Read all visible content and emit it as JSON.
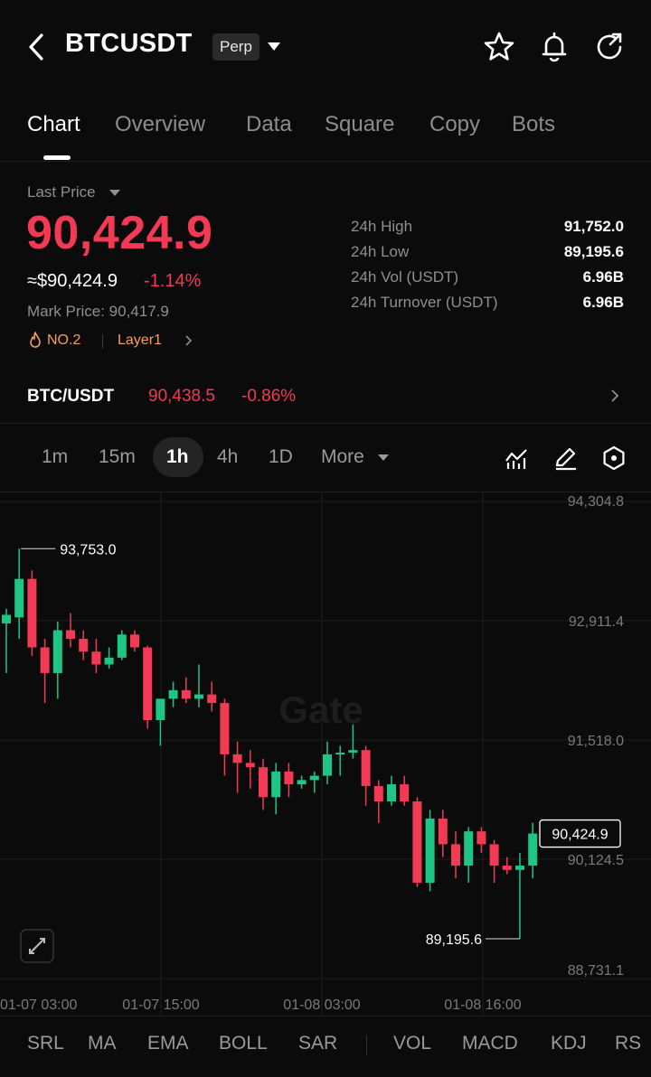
{
  "header": {
    "title": "BTCUSDT",
    "badge": "Perp",
    "icons": [
      "back-arrow-icon",
      "star-icon",
      "bell-icon",
      "share-icon"
    ]
  },
  "tabs": [
    "Chart",
    "Overview",
    "Data",
    "Square",
    "Copy",
    "Bots"
  ],
  "price": {
    "label": "Last Price",
    "last": "90,424.9",
    "usd": "≈$90,424.9",
    "change": "-1.14%",
    "mark": "Mark Price: 90,417.9",
    "rank": "NO.2",
    "tag": "Layer1",
    "stats": [
      {
        "label": "24h  High",
        "value": "91,752.0"
      },
      {
        "label": "24h  Low",
        "value": "89,195.6"
      },
      {
        "label": "24h  Vol (USDT)",
        "value": "6.96B"
      },
      {
        "label": "24h  Turnover (USDT)",
        "value": "6.96B"
      }
    ]
  },
  "spot": {
    "pair": "BTC/USDT",
    "price": "90,438.5",
    "change": "-0.86%"
  },
  "intervals": [
    "1m",
    "15m",
    "1h",
    "4h",
    "1D",
    "More"
  ],
  "indicators": [
    "SRL",
    "MA",
    "EMA",
    "BOLL",
    "SAR",
    "VOL",
    "MACD",
    "KDJ",
    "RS"
  ],
  "colors": {
    "up": "#1fc585",
    "down": "#f23a55",
    "accent_orange": "#f5a05a"
  },
  "chart_data": {
    "type": "candlestick",
    "watermark": "Gate",
    "y_ticks": [
      "94,304.8",
      "92,911.4",
      "91,518.0",
      "90,124.5",
      "88,731.1"
    ],
    "x_ticks": [
      "01-07 03:00",
      "01-07 15:00",
      "01-08 03:00",
      "01-08 16:00"
    ],
    "ylim": [
      88731.1,
      94304.8
    ],
    "high_label": "93,753.0",
    "low_label": "89,195.6",
    "last_label": "90,424.9",
    "candles": [
      {
        "o": 92880,
        "h": 93050,
        "l": 92300,
        "c": 92980
      },
      {
        "o": 92950,
        "h": 93753,
        "l": 92700,
        "c": 93400
      },
      {
        "o": 93400,
        "h": 93500,
        "l": 92500,
        "c": 92600
      },
      {
        "o": 92600,
        "h": 92700,
        "l": 91950,
        "c": 92300
      },
      {
        "o": 92300,
        "h": 92900,
        "l": 92000,
        "c": 92800
      },
      {
        "o": 92800,
        "h": 93000,
        "l": 92600,
        "c": 92700
      },
      {
        "o": 92700,
        "h": 92800,
        "l": 92450,
        "c": 92550
      },
      {
        "o": 92550,
        "h": 92700,
        "l": 92300,
        "c": 92400
      },
      {
        "o": 92400,
        "h": 92600,
        "l": 92350,
        "c": 92480
      },
      {
        "o": 92480,
        "h": 92800,
        "l": 92450,
        "c": 92750
      },
      {
        "o": 92750,
        "h": 92800,
        "l": 92550,
        "c": 92600
      },
      {
        "o": 92600,
        "h": 92620,
        "l": 91650,
        "c": 91750
      },
      {
        "o": 91750,
        "h": 92000,
        "l": 91450,
        "c": 92000
      },
      {
        "o": 92000,
        "h": 92200,
        "l": 91900,
        "c": 92100
      },
      {
        "o": 92100,
        "h": 92250,
        "l": 91950,
        "c": 92000
      },
      {
        "o": 92000,
        "h": 92400,
        "l": 91900,
        "c": 92050
      },
      {
        "o": 92050,
        "h": 92200,
        "l": 91850,
        "c": 91950
      },
      {
        "o": 91950,
        "h": 92000,
        "l": 91100,
        "c": 91350
      },
      {
        "o": 91350,
        "h": 91500,
        "l": 90900,
        "c": 91250
      },
      {
        "o": 91250,
        "h": 91400,
        "l": 90950,
        "c": 91200
      },
      {
        "o": 91200,
        "h": 91300,
        "l": 90700,
        "c": 90850
      },
      {
        "o": 90850,
        "h": 91250,
        "l": 90650,
        "c": 91150
      },
      {
        "o": 91150,
        "h": 91250,
        "l": 90850,
        "c": 91000
      },
      {
        "o": 91000,
        "h": 91100,
        "l": 90950,
        "c": 91050
      },
      {
        "o": 91050,
        "h": 91150,
        "l": 90900,
        "c": 91100
      },
      {
        "o": 91100,
        "h": 91500,
        "l": 91000,
        "c": 91350
      },
      {
        "o": 91350,
        "h": 91450,
        "l": 91100,
        "c": 91370
      },
      {
        "o": 91370,
        "h": 91700,
        "l": 91300,
        "c": 91400
      },
      {
        "o": 91400,
        "h": 91450,
        "l": 90750,
        "c": 90980
      },
      {
        "o": 90980,
        "h": 91050,
        "l": 90550,
        "c": 90800
      },
      {
        "o": 90800,
        "h": 91100,
        "l": 90750,
        "c": 91000
      },
      {
        "o": 91000,
        "h": 91100,
        "l": 90750,
        "c": 90800
      },
      {
        "o": 90800,
        "h": 90850,
        "l": 89800,
        "c": 89850
      },
      {
        "o": 89850,
        "h": 90700,
        "l": 89750,
        "c": 90600
      },
      {
        "o": 90600,
        "h": 90700,
        "l": 90150,
        "c": 90300
      },
      {
        "o": 90300,
        "h": 90450,
        "l": 89900,
        "c": 90050
      },
      {
        "o": 90050,
        "h": 90500,
        "l": 89850,
        "c": 90450
      },
      {
        "o": 90450,
        "h": 90500,
        "l": 90200,
        "c": 90300
      },
      {
        "o": 90300,
        "h": 90350,
        "l": 89850,
        "c": 90050
      },
      {
        "o": 90050,
        "h": 90150,
        "l": 89950,
        "c": 90000
      },
      {
        "o": 90000,
        "h": 90200,
        "l": 89195.6,
        "c": 90050
      },
      {
        "o": 90050,
        "h": 90550,
        "l": 89900,
        "c": 90424.9
      }
    ]
  }
}
